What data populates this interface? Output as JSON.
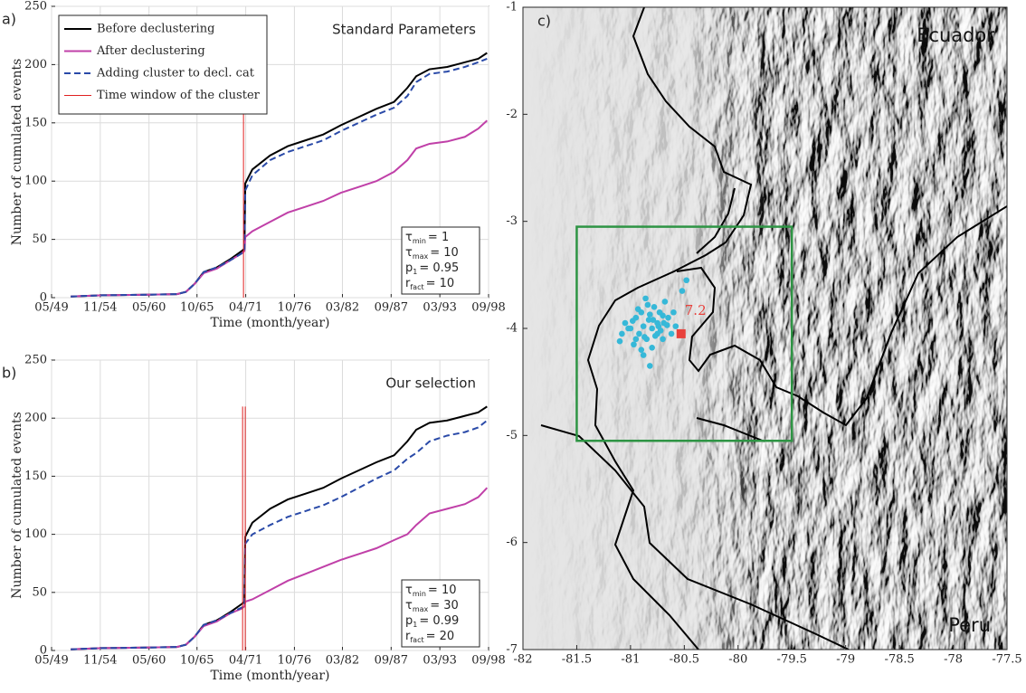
{
  "chart_data": [
    {
      "type": "line",
      "panel_label": "a)",
      "annotation": "Standard Parameters",
      "x_label": "Time (month/year)",
      "y_label": "Number of cumulated events",
      "xlim": [
        1949.33,
        1998.67
      ],
      "xticks": [
        {
          "value": 1949.33,
          "label": "05/49"
        },
        {
          "value": 1954.83,
          "label": "11/54"
        },
        {
          "value": 1960.33,
          "label": "05/60"
        },
        {
          "value": 1965.75,
          "label": "10/65"
        },
        {
          "value": 1971.25,
          "label": "04/71"
        },
        {
          "value": 1976.75,
          "label": "10/76"
        },
        {
          "value": 1982.17,
          "label": "03/82"
        },
        {
          "value": 1987.67,
          "label": "09/87"
        },
        {
          "value": 1993.17,
          "label": "03/93"
        },
        {
          "value": 1998.67,
          "label": "09/98"
        }
      ],
      "ylim": [
        0,
        250
      ],
      "yticks": [
        0,
        50,
        100,
        150,
        200,
        250
      ],
      "grid": true,
      "legend": "upper left",
      "series": [
        {
          "name": "Before declustering",
          "color": "#000000",
          "style": "solid",
          "x": [
            1951.5,
            1955,
            1960,
            1963.5,
            1964.5,
            1965.5,
            1966.5,
            1968,
            1969.5,
            1970.8,
            1971.1,
            1971.2,
            1972,
            1974,
            1976,
            1978,
            1980,
            1982,
            1984,
            1986,
            1988,
            1989.5,
            1990.5,
            1992,
            1994,
            1996,
            1997.5,
            1998.5
          ],
          "values": [
            1,
            2,
            2.5,
            3,
            5,
            12,
            22,
            26,
            33,
            40,
            42,
            98,
            110,
            122,
            130,
            135,
            140,
            148,
            155,
            162,
            168,
            180,
            190,
            196,
            198,
            202,
            205,
            210
          ]
        },
        {
          "name": "After declustering",
          "color": "#c040a8",
          "style": "solid",
          "x": [
            1951.5,
            1955,
            1960,
            1963.5,
            1964.5,
            1965.5,
            1966.5,
            1968,
            1969.5,
            1970.8,
            1971.1,
            1971.2,
            1972,
            1974,
            1976,
            1978,
            1980,
            1982,
            1984,
            1986,
            1988,
            1989.5,
            1990.5,
            1992,
            1994,
            1996,
            1997.5,
            1998.5
          ],
          "values": [
            1,
            2,
            2.5,
            3,
            5,
            12,
            21,
            25,
            32,
            38,
            40,
            52,
            57,
            65,
            73,
            78,
            83,
            90,
            95,
            100,
            108,
            118,
            128,
            132,
            134,
            138,
            145,
            152
          ]
        },
        {
          "name": "Adding cluster to decl. cat",
          "color": "#2a4aa8",
          "style": "dashed",
          "x": [
            1951.5,
            1955,
            1960,
            1963.5,
            1964.5,
            1965.5,
            1966.5,
            1968,
            1969.5,
            1970.8,
            1971.1,
            1971.2,
            1972,
            1974,
            1976,
            1978,
            1980,
            1982,
            1984,
            1986,
            1988,
            1989.5,
            1990.5,
            1992,
            1994,
            1996,
            1997.5,
            1998.5
          ],
          "values": [
            1,
            2,
            2.5,
            3,
            5,
            12,
            22,
            26,
            32,
            38,
            40,
            92,
            105,
            118,
            125,
            130,
            135,
            143,
            150,
            157,
            163,
            173,
            185,
            192,
            194,
            198,
            202,
            205
          ]
        },
        {
          "name": "Time window of the cluster",
          "color": "#e02020",
          "style": "thin",
          "x": [
            1971.0,
            1971.0
          ],
          "values": [
            0,
            178
          ]
        }
      ],
      "parameters": [
        {
          "symbol": "τ",
          "subscript": "min",
          "text": "= 1"
        },
        {
          "symbol": "τ",
          "subscript": "max",
          "text": "= 10"
        },
        {
          "symbol": "p",
          "subscript": "1",
          "text": "= 0.95"
        },
        {
          "symbol": "r",
          "subscript": "fact",
          "text": "= 10"
        }
      ]
    },
    {
      "type": "line",
      "panel_label": "b)",
      "annotation": "Our selection",
      "x_label": "Time (month/year)",
      "y_label": "Number of cumulated events",
      "xlim": [
        1949.33,
        1998.67
      ],
      "xticks": [
        {
          "value": 1949.33,
          "label": "05/49"
        },
        {
          "value": 1954.83,
          "label": "11/54"
        },
        {
          "value": 1960.33,
          "label": "05/60"
        },
        {
          "value": 1965.75,
          "label": "10/65"
        },
        {
          "value": 1971.25,
          "label": "04/71"
        },
        {
          "value": 1976.75,
          "label": "10/76"
        },
        {
          "value": 1982.17,
          "label": "03/82"
        },
        {
          "value": 1987.67,
          "label": "09/87"
        },
        {
          "value": 1993.17,
          "label": "03/93"
        },
        {
          "value": 1998.67,
          "label": "09/98"
        }
      ],
      "ylim": [
        0,
        250
      ],
      "yticks": [
        0,
        50,
        100,
        150,
        200,
        250
      ],
      "grid": true,
      "series": [
        {
          "color": "#000000",
          "style": "solid",
          "x": [
            1951.5,
            1955,
            1960,
            1963.5,
            1964.5,
            1965.5,
            1966.5,
            1968,
            1969.5,
            1970.8,
            1971.1,
            1971.2,
            1972,
            1974,
            1976,
            1978,
            1980,
            1982,
            1984,
            1986,
            1988,
            1989.5,
            1990.5,
            1992,
            1994,
            1996,
            1997.5,
            1998.5
          ],
          "values": [
            1,
            2,
            2.5,
            3,
            5,
            12,
            22,
            26,
            33,
            40,
            42,
            98,
            110,
            122,
            130,
            135,
            140,
            148,
            155,
            162,
            168,
            180,
            190,
            196,
            198,
            202,
            205,
            210
          ]
        },
        {
          "color": "#c040a8",
          "style": "solid",
          "x": [
            1951.5,
            1955,
            1960,
            1963.5,
            1964.5,
            1965.5,
            1966.5,
            1968,
            1969.5,
            1970.8,
            1971.1,
            1971.2,
            1972,
            1974,
            1976,
            1978,
            1980,
            1982,
            1984,
            1986,
            1988,
            1989.5,
            1990.5,
            1992,
            1994,
            1996,
            1997.5,
            1998.5
          ],
          "values": [
            1,
            2,
            2.5,
            3,
            5,
            12,
            21,
            25,
            32,
            36,
            38,
            42,
            44,
            52,
            60,
            66,
            72,
            78,
            83,
            88,
            95,
            100,
            108,
            118,
            122,
            126,
            132,
            140
          ]
        },
        {
          "color": "#2a4aa8",
          "style": "dashed",
          "x": [
            1951.5,
            1955,
            1960,
            1963.5,
            1964.5,
            1965.5,
            1966.5,
            1968,
            1969.5,
            1970.8,
            1971.1,
            1971.2,
            1972,
            1974,
            1976,
            1978,
            1980,
            1982,
            1984,
            1986,
            1988,
            1989.5,
            1990.5,
            1992,
            1994,
            1996,
            1997.5,
            1998.5
          ],
          "values": [
            1,
            2,
            2.5,
            3,
            5,
            12,
            22,
            26,
            32,
            37,
            38,
            92,
            100,
            108,
            115,
            120,
            125,
            132,
            140,
            148,
            155,
            165,
            170,
            180,
            185,
            188,
            192,
            198
          ]
        },
        {
          "color": "#e02020",
          "style": "thin",
          "x": [
            1970.9,
            1970.9,
            1971.0,
            1971.2,
            1971.2
          ],
          "values": [
            0,
            210,
            null,
            210,
            0
          ]
        }
      ],
      "parameters": [
        {
          "symbol": "τ",
          "subscript": "min",
          "text": "= 10"
        },
        {
          "symbol": "τ",
          "subscript": "max",
          "text": "= 30"
        },
        {
          "symbol": "p",
          "subscript": "1",
          "text": "= 0.99"
        },
        {
          "symbol": "r",
          "subscript": "fact",
          "text": "= 20"
        }
      ]
    },
    {
      "type": "map",
      "panel_label": "c)",
      "xlim": [
        -82,
        -77.5
      ],
      "xticks": [
        -82,
        -81.5,
        -81,
        -80.5,
        -80,
        -79.5,
        -79,
        -78.5,
        -78,
        -77.5
      ],
      "ylim": [
        -7,
        -1
      ],
      "yticks": [
        -7,
        -6,
        -5,
        -4,
        -3,
        -2,
        -1
      ],
      "countries": [
        "Ecuador",
        "Peru"
      ],
      "box": {
        "color": "#2e9444",
        "lon": [
          -81.5,
          -79.5
        ],
        "lat": [
          -5.05,
          -3.05
        ]
      },
      "events": {
        "color": "#36b8d8",
        "lon": [
          -81.05,
          -81.0,
          -80.95,
          -80.92,
          -80.9,
          -80.88,
          -80.85,
          -80.83,
          -80.8,
          -80.78,
          -80.75,
          -80.72,
          -80.7,
          -80.68,
          -80.65,
          -81.1,
          -81.08,
          -80.97,
          -80.93,
          -80.87,
          -80.82,
          -80.77,
          -80.74,
          -80.7,
          -80.66,
          -80.62,
          -80.98,
          -80.9,
          -80.84,
          -80.79,
          -80.73,
          -80.69,
          -80.86,
          -80.8,
          -80.75,
          -81.02,
          -80.95,
          -80.6,
          -80.52,
          -80.48,
          -80.82,
          -80.88,
          -80.58
        ],
        "lat": [
          -3.95,
          -4.0,
          -3.9,
          -4.05,
          -3.85,
          -3.98,
          -4.1,
          -3.92,
          -4.0,
          -3.8,
          -3.95,
          -4.02,
          -3.88,
          -3.75,
          -3.9,
          -4.12,
          -4.05,
          -4.15,
          -3.82,
          -4.08,
          -3.87,
          -4.07,
          -3.98,
          -4.1,
          -3.97,
          -4.05,
          -3.93,
          -4.2,
          -3.78,
          -3.92,
          -3.85,
          -3.95,
          -3.72,
          -4.18,
          -4.05,
          -4.0,
          -4.1,
          -3.85,
          -3.65,
          -3.55,
          -4.35,
          -4.25,
          -3.98
        ]
      },
      "mainshock": {
        "lon": -80.53,
        "lat": -4.05,
        "magnitude": 7.2,
        "color": "#e8413c"
      }
    }
  ]
}
